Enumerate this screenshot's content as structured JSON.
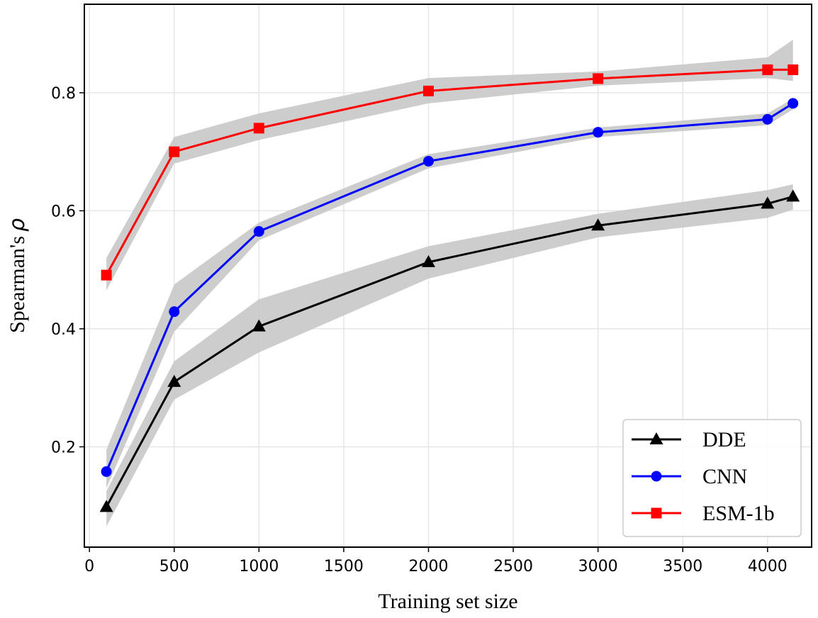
{
  "chart_data": {
    "type": "line",
    "title": "",
    "xlabel": "Training set size",
    "ylabel": "Spearman's",
    "ylabel_symbol": "ρ",
    "xlim": [
      -30,
      4260
    ],
    "ylim": [
      0.03,
      0.95
    ],
    "xticks": [
      0,
      500,
      1000,
      1500,
      2000,
      2500,
      3000,
      3500,
      4000
    ],
    "yticks": [
      0.2,
      0.4,
      0.6,
      0.8
    ],
    "ytick_labels": [
      "0.2",
      "0.4",
      "0.6",
      "0.8"
    ],
    "grid": true,
    "legend_position": "bottom-right",
    "x": [
      100,
      500,
      1000,
      2000,
      3000,
      4000,
      4150
    ],
    "series": [
      {
        "name": "DDE",
        "color": "#000000",
        "marker": "triangle",
        "values": [
          0.098,
          0.31,
          0.404,
          0.513,
          0.575,
          0.612,
          0.624
        ],
        "band_lower": [
          0.065,
          0.28,
          0.36,
          0.485,
          0.555,
          0.588,
          0.602
        ],
        "band_upper": [
          0.125,
          0.345,
          0.45,
          0.54,
          0.595,
          0.635,
          0.645
        ]
      },
      {
        "name": "CNN",
        "color": "#0000ff",
        "marker": "circle",
        "values": [
          0.158,
          0.429,
          0.565,
          0.684,
          0.733,
          0.755,
          0.782
        ],
        "band_lower": [
          0.13,
          0.395,
          0.55,
          0.672,
          0.725,
          0.745,
          0.772
        ],
        "band_upper": [
          0.195,
          0.475,
          0.58,
          0.696,
          0.741,
          0.765,
          0.79
        ]
      },
      {
        "name": "ESM-1b",
        "color": "#ff0000",
        "marker": "square",
        "values": [
          0.491,
          0.7,
          0.74,
          0.803,
          0.824,
          0.839,
          0.839
        ],
        "band_lower": [
          0.465,
          0.68,
          0.72,
          0.782,
          0.812,
          0.825,
          0.82
        ],
        "band_upper": [
          0.52,
          0.725,
          0.765,
          0.825,
          0.836,
          0.86,
          0.89
        ]
      }
    ],
    "band_color": "#c8c8c8"
  }
}
